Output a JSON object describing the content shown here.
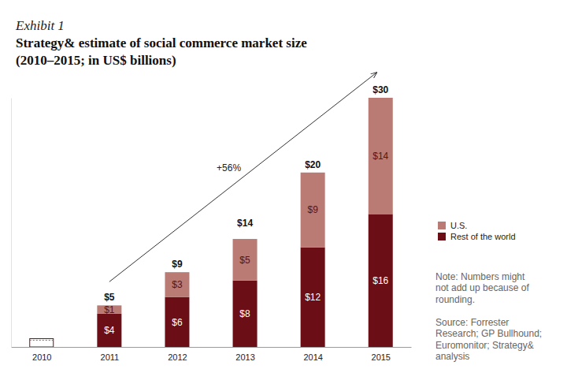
{
  "chart_data": {
    "type": "bar",
    "exhibit": "Exhibit 1",
    "title": "Strategy& estimate of social commerce market size",
    "subtitle": "(2010–2015; in US$ billions)",
    "categories": [
      "2010",
      "2011",
      "2012",
      "2013",
      "2014",
      "2015"
    ],
    "series": [
      {
        "name": "Rest of the world",
        "color": "#6b0e16",
        "values": [
          null,
          4,
          6,
          8,
          12,
          16
        ],
        "value_labels": [
          null,
          "$4",
          "$6",
          "$8",
          "$12",
          "$16"
        ]
      },
      {
        "name": "U.S.",
        "color": "#b97b73",
        "values": [
          null,
          1,
          3,
          5,
          9,
          14
        ],
        "value_labels": [
          null,
          "$1",
          "$3",
          "$5",
          "$9",
          "$14"
        ]
      }
    ],
    "totals": [
      1,
      5,
      9,
      14,
      20,
      30
    ],
    "total_labels": [
      null,
      "$5",
      "$9",
      "$14",
      "$20",
      "$30"
    ],
    "ylim": [
      0,
      30
    ],
    "yticks": [],
    "stacked": true,
    "data_labels": true,
    "tick_labels": "x",
    "legend": "right",
    "annotations": [
      "+56%"
    ],
    "note": [
      "Note: Numbers might",
      "not add up because of",
      "rounding."
    ],
    "source": [
      "Source: Forrester",
      "Research; GP Bullhound;",
      "Euromonitor; Strategy&",
      "analysis"
    ]
  }
}
